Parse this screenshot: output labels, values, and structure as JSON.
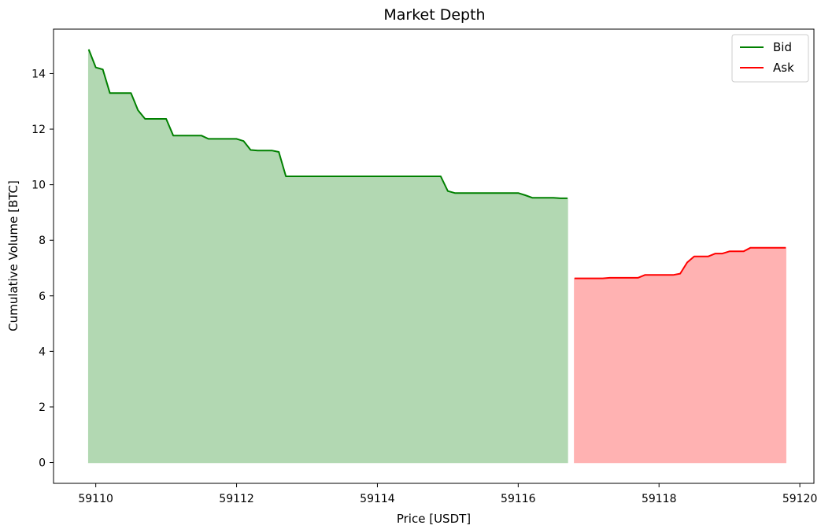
{
  "chart_data": {
    "type": "area",
    "title": "Market Depth",
    "xlabel": "Price [USDT]",
    "ylabel": "Cumulative Volume [BTC]",
    "xlim": [
      59109.4,
      59120.2
    ],
    "ylim": [
      -0.75,
      15.6
    ],
    "xticks": [
      59110,
      59112,
      59114,
      59116,
      59118,
      59120
    ],
    "yticks": [
      0,
      2,
      4,
      6,
      8,
      10,
      12,
      14
    ],
    "grid": false,
    "legend_position": "top-right",
    "series": [
      {
        "name": "Bid",
        "color": "#008000",
        "fill_color": "#b2d8b2",
        "x": [
          59109.9,
          59110.0,
          59110.1,
          59110.2,
          59110.3,
          59110.4,
          59110.5,
          59110.6,
          59110.7,
          59110.8,
          59110.9,
          59111.0,
          59111.1,
          59111.2,
          59111.3,
          59111.4,
          59111.5,
          59111.6,
          59111.7,
          59111.8,
          59111.9,
          59112.0,
          59112.1,
          59112.2,
          59112.3,
          59112.4,
          59112.5,
          59112.6,
          59112.7,
          59112.8,
          59112.9,
          59113.0,
          59113.5,
          59114.0,
          59114.5,
          59114.9,
          59115.0,
          59115.1,
          59115.2,
          59115.5,
          59115.8,
          59116.0,
          59116.1,
          59116.2,
          59116.3,
          59116.5,
          59116.6,
          59116.7
        ],
        "y": [
          14.87,
          14.22,
          14.15,
          13.3,
          13.3,
          13.3,
          13.3,
          12.68,
          12.37,
          12.37,
          12.37,
          12.37,
          11.77,
          11.77,
          11.77,
          11.77,
          11.77,
          11.65,
          11.65,
          11.65,
          11.65,
          11.65,
          11.57,
          11.25,
          11.23,
          11.23,
          11.23,
          11.18,
          10.3,
          10.3,
          10.3,
          10.3,
          10.3,
          10.3,
          10.3,
          10.3,
          9.77,
          9.7,
          9.7,
          9.7,
          9.7,
          9.7,
          9.62,
          9.53,
          9.53,
          9.53,
          9.51,
          9.51
        ]
      },
      {
        "name": "Ask",
        "color": "#ff0000",
        "fill_color": "#ffb2b2",
        "x": [
          59116.8,
          59117.0,
          59117.2,
          59117.3,
          59117.5,
          59117.6,
          59117.7,
          59117.8,
          59118.0,
          59118.1,
          59118.2,
          59118.3,
          59118.4,
          59118.5,
          59118.6,
          59118.7,
          59118.8,
          59118.9,
          59119.0,
          59119.2,
          59119.3,
          59119.5,
          59119.8
        ],
        "y": [
          6.63,
          6.63,
          6.63,
          6.65,
          6.65,
          6.65,
          6.65,
          6.75,
          6.75,
          6.75,
          6.75,
          6.8,
          7.2,
          7.42,
          7.42,
          7.42,
          7.52,
          7.52,
          7.6,
          7.6,
          7.73,
          7.73,
          7.73
        ]
      }
    ]
  }
}
